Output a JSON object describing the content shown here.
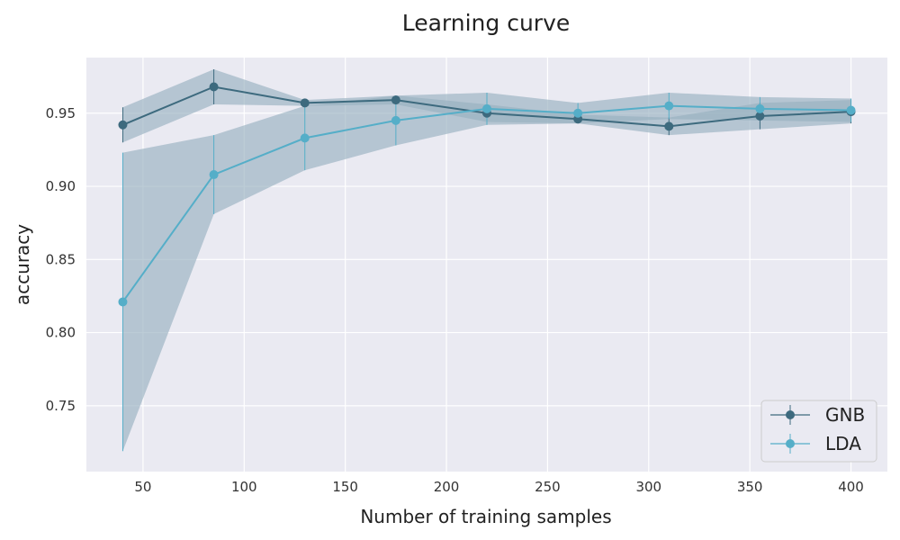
{
  "chart_data": {
    "type": "line",
    "title": "Learning curve",
    "xlabel": "Number of training samples",
    "ylabel": "accuracy",
    "xlim": [
      22,
      418
    ],
    "ylim": [
      0.705,
      0.988
    ],
    "xticks": [
      50,
      100,
      150,
      200,
      250,
      300,
      350,
      400
    ],
    "yticks": [
      0.75,
      0.8,
      0.85,
      0.9,
      0.95
    ],
    "grid": true,
    "legend_position": "bottom-right",
    "x": [
      40,
      85,
      130,
      175,
      220,
      265,
      310,
      355,
      400
    ],
    "series": [
      {
        "name": "GNB",
        "color": "#3d6a7e",
        "values": [
          0.942,
          0.968,
          0.957,
          0.959,
          0.95,
          0.946,
          0.941,
          0.948,
          0.951
        ],
        "std": [
          0.012,
          0.012,
          0.002,
          0.003,
          0.006,
          0.003,
          0.006,
          0.009,
          0.008
        ]
      },
      {
        "name": "LDA",
        "color": "#55aec8",
        "values": [
          0.821,
          0.908,
          0.933,
          0.945,
          0.953,
          0.95,
          0.955,
          0.953,
          0.952
        ],
        "std": [
          0.102,
          0.027,
          0.022,
          0.017,
          0.011,
          0.007,
          0.009,
          0.008,
          0.008
        ]
      }
    ],
    "band_color": "#98b0c0"
  }
}
